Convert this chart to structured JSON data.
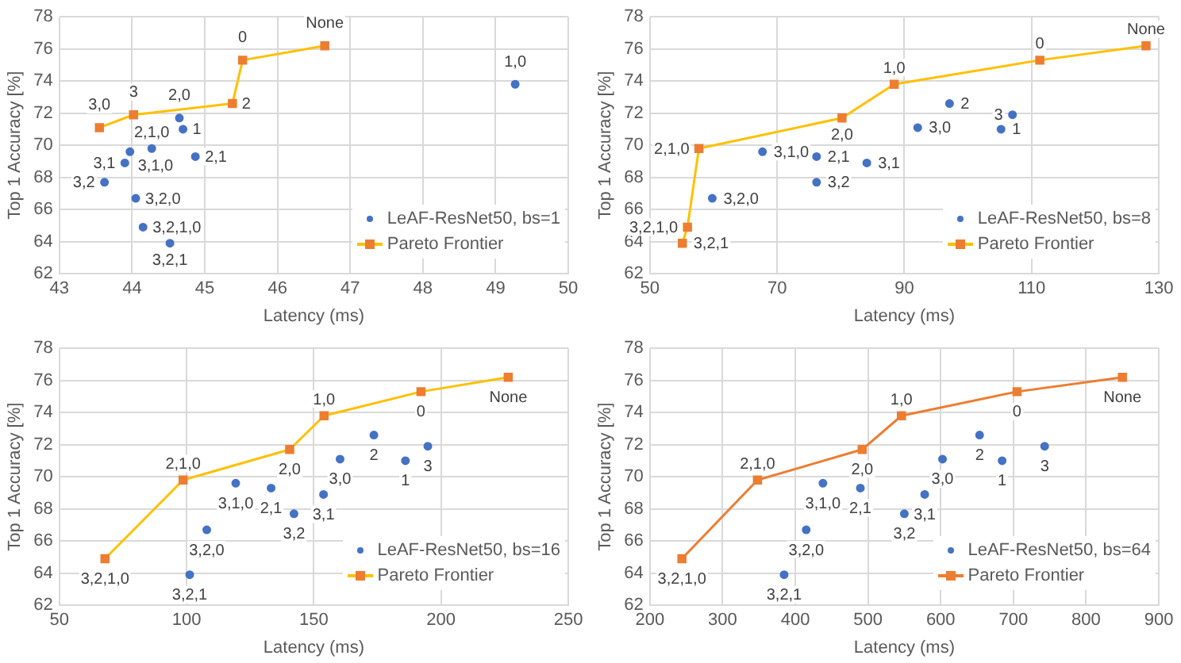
{
  "chart_data": [
    {
      "type": "scatter",
      "xlabel": "Latency (ms)",
      "ylabel": "Top 1 Accuracy [%]",
      "xlim": [
        43,
        50
      ],
      "xticks": [
        43,
        44,
        45,
        46,
        47,
        48,
        49,
        50
      ],
      "ylim": [
        62,
        78
      ],
      "yticks": [
        62,
        64,
        66,
        68,
        70,
        72,
        74,
        76,
        78
      ],
      "grid": true,
      "legend": "bottom right",
      "series": [
        {
          "name": "LeAF-ResNet50, bs=1",
          "type": "scatter",
          "marker": "circle",
          "color": "#4472c4",
          "x": [
            49.27,
            44.65,
            44.7,
            44.27,
            44.87,
            43.9,
            43.97,
            43.62,
            44.05,
            44.15,
            44.52
          ],
          "values": [
            73.8,
            71.7,
            71.0,
            69.8,
            69.3,
            68.9,
            69.6,
            67.7,
            66.7,
            64.9,
            63.9
          ]
        },
        {
          "name": "Pareto Frontier",
          "type": "line",
          "marker": "square",
          "color": "#ffc000",
          "colors": [
            "#ed7d31",
            "#ed7d31",
            "#ed7d31",
            "#ed7d31",
            "#ed7d31"
          ],
          "x": [
            43.55,
            44.02,
            45.38,
            45.52,
            46.65
          ],
          "values": [
            71.1,
            71.9,
            72.6,
            75.3,
            76.2
          ]
        }
      ],
      "annotations": [
        {
          "text": "3,0",
          "x": 43.55,
          "y": 71.1
        },
        {
          "text": "3",
          "x": 44.02,
          "y": 71.9
        },
        {
          "text": "2",
          "x": 45.38,
          "y": 72.6
        },
        {
          "text": "0",
          "x": 45.52,
          "y": 75.3
        },
        {
          "text": "None",
          "x": 46.65,
          "y": 76.2
        },
        {
          "text": "1,0",
          "x": 49.27,
          "y": 73.8
        },
        {
          "text": "2,0",
          "x": 44.65,
          "y": 71.7
        },
        {
          "text": "1",
          "x": 44.7,
          "y": 71.0
        },
        {
          "text": "2,1,0",
          "x": 44.27,
          "y": 69.8
        },
        {
          "text": "2,1",
          "x": 44.87,
          "y": 69.3
        },
        {
          "text": "3,1",
          "x": 43.9,
          "y": 68.9
        },
        {
          "text": "3,1,0",
          "x": 43.97,
          "y": 69.6
        },
        {
          "text": "3,2",
          "x": 43.62,
          "y": 67.7
        },
        {
          "text": "3,2,0",
          "x": 44.05,
          "y": 66.7
        },
        {
          "text": "3,2,1,0",
          "x": 44.15,
          "y": 64.9
        },
        {
          "text": "3,2,1",
          "x": 44.52,
          "y": 63.9
        }
      ]
    },
    {
      "type": "scatter",
      "xlabel": "Latency (ms)",
      "ylabel": "Top 1 Accuracy [%]",
      "xlim": [
        50,
        130
      ],
      "xticks": [
        50,
        70,
        90,
        110,
        130
      ],
      "ylim": [
        62,
        78
      ],
      "yticks": [
        62,
        64,
        66,
        68,
        70,
        72,
        74,
        76,
        78
      ],
      "grid": true,
      "legend": "bottom right",
      "series": [
        {
          "name": "LeAF-ResNet50, bs=8",
          "type": "scatter",
          "marker": "circle",
          "color": "#4472c4",
          "x": [
            59.8,
            67.7,
            76.2,
            76.2,
            84.1,
            92.1,
            97.1,
            105.2,
            107
          ],
          "values": [
            66.7,
            69.6,
            69.3,
            67.7,
            68.9,
            71.1,
            72.6,
            71.0,
            71.9
          ]
        },
        {
          "name": "Pareto Frontier",
          "type": "line",
          "marker": "square",
          "color": "#ffc000",
          "colors": [
            "#ed7d31",
            "#ed7d31",
            "#ed7d31",
            "#ed7d31",
            "#ed7d31",
            "#ed7d31",
            "#ed7d31"
          ],
          "x": [
            55.1,
            55.9,
            57.7,
            80.2,
            88.4,
            111.3,
            128
          ],
          "values": [
            63.9,
            64.9,
            69.8,
            71.7,
            73.8,
            75.3,
            76.2
          ]
        }
      ],
      "annotations": [
        {
          "text": "3,2,1",
          "x": 55.1,
          "y": 63.9
        },
        {
          "text": "3,2,1,0",
          "x": 55.9,
          "y": 64.9
        },
        {
          "text": "2,1,0",
          "x": 57.7,
          "y": 69.8
        },
        {
          "text": "2,0",
          "x": 80.2,
          "y": 71.7
        },
        {
          "text": "1,0",
          "x": 88.4,
          "y": 73.8
        },
        {
          "text": "0",
          "x": 111.3,
          "y": 75.3
        },
        {
          "text": "None",
          "x": 128,
          "y": 76.2
        },
        {
          "text": "3,2,0",
          "x": 59.8,
          "y": 66.7
        },
        {
          "text": "3,1,0",
          "x": 67.7,
          "y": 69.6
        },
        {
          "text": "2,1",
          "x": 76.2,
          "y": 69.3
        },
        {
          "text": "3,2",
          "x": 76.2,
          "y": 67.7
        },
        {
          "text": "3,1",
          "x": 84.1,
          "y": 68.9
        },
        {
          "text": "3,0",
          "x": 92.1,
          "y": 71.1
        },
        {
          "text": "2",
          "x": 97.1,
          "y": 72.6
        },
        {
          "text": "1",
          "x": 105.2,
          "y": 71.0
        },
        {
          "text": "3",
          "x": 107,
          "y": 71.9
        }
      ]
    },
    {
      "type": "scatter",
      "xlabel": "Latency (ms)",
      "ylabel": "Top 1 Accuracy [%]",
      "xlim": [
        50,
        250
      ],
      "xticks": [
        50,
        100,
        150,
        200,
        250
      ],
      "ylim": [
        62,
        78
      ],
      "yticks": [
        62,
        64,
        66,
        68,
        70,
        72,
        74,
        76,
        78
      ],
      "grid": true,
      "legend": "bottom right",
      "series": [
        {
          "name": "LeAF-ResNet50, bs=16",
          "type": "scatter",
          "marker": "circle",
          "color": "#4472c4",
          "x": [
            101.2,
            107.9,
            119.3,
            133.2,
            142.2,
            153.8,
            160.3,
            173.6,
            186,
            194.8
          ],
          "values": [
            63.9,
            66.7,
            69.6,
            69.3,
            67.7,
            68.9,
            71.1,
            72.6,
            71.0,
            71.9
          ]
        },
        {
          "name": "Pareto Frontier",
          "type": "line",
          "marker": "square",
          "color": "#ffc000",
          "colors": [
            "#ed7d31",
            "#ed7d31",
            "#ed7d31",
            "#ed7d31",
            "#ed7d31",
            "#ed7d31"
          ],
          "x": [
            67.9,
            98.6,
            140.5,
            154,
            192.1,
            226.4
          ],
          "values": [
            64.9,
            69.8,
            71.7,
            73.8,
            75.3,
            76.2
          ]
        }
      ],
      "annotations": [
        {
          "text": "3,2,1,0",
          "x": 67.9,
          "y": 64.9
        },
        {
          "text": "2,1,0",
          "x": 98.6,
          "y": 69.8
        },
        {
          "text": "2,0",
          "x": 140.5,
          "y": 71.7
        },
        {
          "text": "1,0",
          "x": 154,
          "y": 73.8
        },
        {
          "text": "0",
          "x": 192.1,
          "y": 75.3
        },
        {
          "text": "None",
          "x": 226.4,
          "y": 76.2
        },
        {
          "text": "3,2,1",
          "x": 101.2,
          "y": 63.9
        },
        {
          "text": "3,2,0",
          "x": 107.9,
          "y": 66.7
        },
        {
          "text": "3,1,0",
          "x": 119.3,
          "y": 69.6
        },
        {
          "text": "2,1",
          "x": 133.2,
          "y": 69.3
        },
        {
          "text": "3,2",
          "x": 142.2,
          "y": 67.7
        },
        {
          "text": "3,1",
          "x": 153.8,
          "y": 68.9
        },
        {
          "text": "3,0",
          "x": 160.3,
          "y": 71.1
        },
        {
          "text": "2",
          "x": 173.6,
          "y": 72.6
        },
        {
          "text": "1",
          "x": 186,
          "y": 71.0
        },
        {
          "text": "3",
          "x": 194.8,
          "y": 71.9
        }
      ]
    },
    {
      "type": "scatter",
      "xlabel": "Latency (ms)",
      "ylabel": "Top 1 Accuracy [%]",
      "xlim": [
        200,
        900
      ],
      "xticks": [
        200,
        300,
        400,
        500,
        600,
        700,
        800,
        900
      ],
      "ylim": [
        62,
        78
      ],
      "yticks": [
        62,
        64,
        66,
        68,
        70,
        72,
        74,
        76,
        78
      ],
      "grid": true,
      "legend": "bottom right",
      "series": [
        {
          "name": "LeAF-ResNet50, bs=64",
          "type": "scatter",
          "marker": "circle",
          "color": "#4472c4",
          "x": [
            384.6,
            415,
            438,
            489.5,
            550,
            578,
            602.5,
            653.5,
            684.5,
            743
          ],
          "values": [
            63.9,
            66.7,
            69.6,
            69.3,
            67.7,
            68.9,
            71.1,
            72.6,
            71.0,
            71.9
          ]
        },
        {
          "name": "Pareto Frontier",
          "type": "line",
          "marker": "square",
          "color": "#ed7d31",
          "colors": [
            "#ed7d31",
            "#ed7d31",
            "#ed7d31",
            "#ed7d31",
            "#ed7d31",
            "#ed7d31"
          ],
          "x": [
            244,
            348,
            492,
            546,
            705,
            850
          ],
          "values": [
            64.9,
            69.8,
            71.7,
            73.8,
            75.3,
            76.2
          ]
        }
      ],
      "annotations": [
        {
          "text": "3,2,1,0",
          "x": 244,
          "y": 64.9
        },
        {
          "text": "2,1,0",
          "x": 348,
          "y": 69.8
        },
        {
          "text": "2,0",
          "x": 492,
          "y": 71.7
        },
        {
          "text": "1,0",
          "x": 546,
          "y": 73.8
        },
        {
          "text": "0",
          "x": 705,
          "y": 75.3
        },
        {
          "text": "None",
          "x": 850,
          "y": 76.2
        },
        {
          "text": "3,2,1",
          "x": 384.6,
          "y": 63.9
        },
        {
          "text": "3,2,0",
          "x": 415,
          "y": 66.7
        },
        {
          "text": "3,1,0",
          "x": 438,
          "y": 69.6
        },
        {
          "text": "2,1",
          "x": 489.5,
          "y": 69.3
        },
        {
          "text": "3,2",
          "x": 550,
          "y": 67.7
        },
        {
          "text": "3,1",
          "x": 578,
          "y": 68.9
        },
        {
          "text": "3,0",
          "x": 602.5,
          "y": 71.1
        },
        {
          "text": "2",
          "x": 653.5,
          "y": 72.6
        },
        {
          "text": "1",
          "x": 684.5,
          "y": 71.0
        },
        {
          "text": "3",
          "x": 743,
          "y": 71.9
        }
      ]
    }
  ]
}
